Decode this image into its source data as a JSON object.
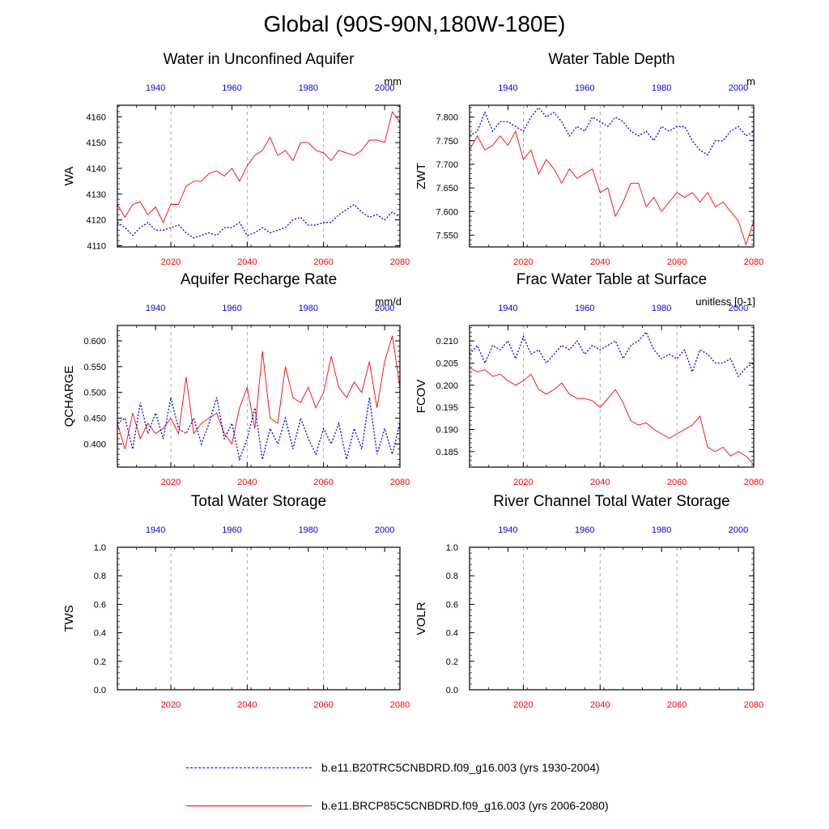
{
  "page": {
    "title": "Global (90S-90N,180W-180E)"
  },
  "legend": [
    {
      "label": "b.e11.B20TRC5CNBDRD.f09_g16.003 (yrs 1930-2004)",
      "color": "#0000ff",
      "style": "dashed"
    },
    {
      "label": "b.e11.BRCP85C5CNBDRD.f09_g16.003 (yrs 2006-2080)",
      "color": "#ff0000",
      "style": "solid"
    }
  ],
  "colors": {
    "future": "#ff0000",
    "historical": "#0000ff",
    "grid": "#999999"
  },
  "chart_data": [
    {
      "type": "line",
      "title": "Water in Unconfined Aquifer",
      "ylabel": "WA",
      "units": "mm",
      "x_bottom": {
        "range": [
          2006,
          2080
        ],
        "ticks": [
          2020,
          2040,
          2060,
          2080
        ],
        "color": "#ff0000"
      },
      "x_top": {
        "range": [
          1930,
          2004
        ],
        "ticks": [
          1940,
          1960,
          1980,
          2000
        ],
        "color": "#0000ff"
      },
      "ylim": [
        4109.5,
        4164.5
      ],
      "yticks": [
        4110,
        4120,
        4130,
        4140,
        4150,
        4160
      ],
      "ytick_labels": [
        "4110",
        "4120",
        "4130",
        "4140",
        "4150",
        "4160"
      ],
      "series": [
        {
          "name": "b.e11.BRCP85C5CNBDRD.f09_g16.003 (yrs 2006-2080)",
          "style": "solid",
          "color": "#ff0000",
          "x": [
            2006,
            2008,
            2010,
            2012,
            2014,
            2016,
            2018,
            2020,
            2022,
            2024,
            2026,
            2028,
            2030,
            2032,
            2034,
            2036,
            2038,
            2040,
            2042,
            2044,
            2046,
            2048,
            2050,
            2052,
            2054,
            2056,
            2058,
            2060,
            2062,
            2064,
            2066,
            2068,
            2070,
            2072,
            2074,
            2076,
            2078,
            2080
          ],
          "values": [
            4126,
            4121,
            4126,
            4127,
            4122,
            4125,
            4119,
            4126,
            4126,
            4133,
            4135,
            4135,
            4138,
            4139,
            4137,
            4140,
            4135,
            4141,
            4145,
            4147,
            4152,
            4145,
            4147,
            4143,
            4150,
            4150,
            4147,
            4146,
            4143,
            4147,
            4146,
            4145,
            4147,
            4151,
            4151,
            4150,
            4162,
            4158
          ]
        },
        {
          "name": "b.e11.B20TRC5CNBDRD.f09_g16.003 (yrs 1930-2004)",
          "style": "dashed",
          "color": "#0000ff",
          "x": [
            2006,
            2008,
            2010,
            2012,
            2014,
            2016,
            2018,
            2020,
            2022,
            2024,
            2026,
            2028,
            2030,
            2032,
            2034,
            2036,
            2038,
            2040,
            2042,
            2044,
            2046,
            2048,
            2050,
            2052,
            2054,
            2056,
            2058,
            2060,
            2062,
            2064,
            2066,
            2068,
            2070,
            2072,
            2074,
            2076,
            2078,
            2080
          ],
          "values": [
            4119,
            4117,
            4114,
            4117,
            4119,
            4116,
            4116,
            4117,
            4118,
            4115,
            4113,
            4114,
            4115,
            4114,
            4117,
            4117,
            4119,
            4114,
            4115,
            4117,
            4115,
            4116,
            4117,
            4120,
            4121,
            4118,
            4118,
            4119,
            4119,
            4122,
            4124,
            4126,
            4123,
            4121,
            4122,
            4120,
            4123,
            4121
          ]
        }
      ]
    },
    {
      "type": "line",
      "title": "Water Table Depth",
      "ylabel": "ZWT",
      "units": "m",
      "x_bottom": {
        "range": [
          2006,
          2080
        ],
        "ticks": [
          2020,
          2040,
          2060,
          2080
        ],
        "color": "#ff0000"
      },
      "x_top": {
        "range": [
          1930,
          2004
        ],
        "ticks": [
          1940,
          1960,
          1980,
          2000
        ],
        "color": "#0000ff"
      },
      "ylim": [
        7.525,
        7.825
      ],
      "yticks": [
        7.55,
        7.6,
        7.65,
        7.7,
        7.75,
        7.8
      ],
      "ytick_labels": [
        "7.550",
        "7.600",
        "7.650",
        "7.700",
        "7.750",
        "7.800"
      ],
      "series": [
        {
          "name": "b.e11.BRCP85C5CNBDRD.f09_g16.003 (yrs 2006-2080)",
          "style": "solid",
          "color": "#ff0000",
          "x": [
            2006,
            2008,
            2010,
            2012,
            2014,
            2016,
            2018,
            2020,
            2022,
            2024,
            2026,
            2028,
            2030,
            2032,
            2034,
            2036,
            2038,
            2040,
            2042,
            2044,
            2046,
            2048,
            2050,
            2052,
            2054,
            2056,
            2058,
            2060,
            2062,
            2064,
            2066,
            2068,
            2070,
            2072,
            2074,
            2076,
            2078,
            2080
          ],
          "values": [
            7.73,
            7.76,
            7.73,
            7.74,
            7.76,
            7.74,
            7.77,
            7.71,
            7.73,
            7.68,
            7.71,
            7.69,
            7.66,
            7.69,
            7.67,
            7.68,
            7.69,
            7.64,
            7.65,
            7.59,
            7.62,
            7.66,
            7.66,
            7.61,
            7.63,
            7.6,
            7.62,
            7.64,
            7.63,
            7.64,
            7.62,
            7.64,
            7.61,
            7.62,
            7.6,
            7.58,
            7.53,
            7.58
          ]
        },
        {
          "name": "b.e11.B20TRC5CNBDRD.f09_g16.003 (yrs 1930-2004)",
          "style": "dashed",
          "color": "#0000ff",
          "x": [
            2006,
            2008,
            2010,
            2012,
            2014,
            2016,
            2018,
            2020,
            2022,
            2024,
            2026,
            2028,
            2030,
            2032,
            2034,
            2036,
            2038,
            2040,
            2042,
            2044,
            2046,
            2048,
            2050,
            2052,
            2054,
            2056,
            2058,
            2060,
            2062,
            2064,
            2066,
            2068,
            2070,
            2072,
            2074,
            2076,
            2078,
            2080
          ],
          "values": [
            7.76,
            7.77,
            7.81,
            7.77,
            7.79,
            7.79,
            7.78,
            7.77,
            7.8,
            7.82,
            7.8,
            7.81,
            7.79,
            7.76,
            7.78,
            7.77,
            7.8,
            7.79,
            7.78,
            7.8,
            7.79,
            7.77,
            7.76,
            7.77,
            7.75,
            7.78,
            7.77,
            7.78,
            7.78,
            7.75,
            7.73,
            7.72,
            7.75,
            7.75,
            7.77,
            7.78,
            7.76,
            7.77
          ]
        }
      ]
    },
    {
      "type": "line",
      "title": "Aquifer Recharge Rate",
      "ylabel": "QCHARGE",
      "units": "mm/d",
      "x_bottom": {
        "range": [
          2006,
          2080
        ],
        "ticks": [
          2020,
          2040,
          2060,
          2080
        ],
        "color": "#ff0000"
      },
      "x_top": {
        "range": [
          1930,
          2004
        ],
        "ticks": [
          1940,
          1960,
          1980,
          2000
        ],
        "color": "#0000ff"
      },
      "ylim": [
        0.355,
        0.63
      ],
      "yticks": [
        0.4,
        0.45,
        0.5,
        0.55,
        0.6
      ],
      "ytick_labels": [
        "0.400",
        "0.450",
        "0.500",
        "0.550",
        "0.600"
      ],
      "series": [
        {
          "name": "b.e11.BRCP85C5CNBDRD.f09_g16.003 (yrs 2006-2080)",
          "style": "solid",
          "color": "#ff0000",
          "x": [
            2006,
            2008,
            2010,
            2012,
            2014,
            2016,
            2018,
            2020,
            2022,
            2024,
            2026,
            2028,
            2030,
            2032,
            2034,
            2036,
            2038,
            2040,
            2042,
            2044,
            2046,
            2048,
            2050,
            2052,
            2054,
            2056,
            2058,
            2060,
            2062,
            2064,
            2066,
            2068,
            2070,
            2072,
            2074,
            2076,
            2078,
            2080
          ],
          "values": [
            0.44,
            0.39,
            0.46,
            0.41,
            0.44,
            0.42,
            0.43,
            0.45,
            0.42,
            0.53,
            0.42,
            0.44,
            0.45,
            0.46,
            0.42,
            0.4,
            0.47,
            0.51,
            0.43,
            0.58,
            0.45,
            0.44,
            0.55,
            0.49,
            0.48,
            0.51,
            0.47,
            0.5,
            0.57,
            0.51,
            0.49,
            0.52,
            0.5,
            0.56,
            0.47,
            0.56,
            0.61,
            0.51
          ]
        },
        {
          "name": "b.e11.B20TRC5CNBDRD.f09_g16.003 (yrs 1930-2004)",
          "style": "dashed",
          "color": "#0000ff",
          "x": [
            2006,
            2008,
            2010,
            2012,
            2014,
            2016,
            2018,
            2020,
            2022,
            2024,
            2026,
            2028,
            2030,
            2032,
            2034,
            2036,
            2038,
            2040,
            2042,
            2044,
            2046,
            2048,
            2050,
            2052,
            2054,
            2056,
            2058,
            2060,
            2062,
            2064,
            2066,
            2068,
            2070,
            2072,
            2074,
            2076,
            2078,
            2080
          ],
          "values": [
            0.44,
            0.45,
            0.39,
            0.48,
            0.42,
            0.46,
            0.41,
            0.49,
            0.43,
            0.42,
            0.45,
            0.4,
            0.44,
            0.49,
            0.41,
            0.44,
            0.37,
            0.41,
            0.47,
            0.37,
            0.43,
            0.4,
            0.45,
            0.39,
            0.45,
            0.41,
            0.38,
            0.43,
            0.4,
            0.44,
            0.37,
            0.43,
            0.39,
            0.49,
            0.38,
            0.43,
            0.38,
            0.44
          ]
        }
      ]
    },
    {
      "type": "line",
      "title": "Frac Water Table at Surface",
      "ylabel": "FCOV",
      "units": "unitless [0-1]",
      "x_bottom": {
        "range": [
          2006,
          2080
        ],
        "ticks": [
          2020,
          2040,
          2060,
          2080
        ],
        "color": "#ff0000"
      },
      "x_top": {
        "range": [
          1930,
          2004
        ],
        "ticks": [
          1940,
          1960,
          1980,
          2000
        ],
        "color": "#0000ff"
      },
      "ylim": [
        0.1815,
        0.2135
      ],
      "yticks": [
        0.185,
        0.19,
        0.195,
        0.2,
        0.205,
        0.21
      ],
      "ytick_labels": [
        "0.185",
        "0.190",
        "0.195",
        "0.200",
        "0.205",
        "0.210"
      ],
      "series": [
        {
          "name": "b.e11.BRCP85C5CNBDRD.f09_g16.003 (yrs 2006-2080)",
          "style": "solid",
          "color": "#ff0000",
          "x": [
            2006,
            2008,
            2010,
            2012,
            2014,
            2016,
            2018,
            2020,
            2022,
            2024,
            2026,
            2028,
            2030,
            2032,
            2034,
            2036,
            2038,
            2040,
            2042,
            2044,
            2046,
            2048,
            2050,
            2052,
            2054,
            2056,
            2058,
            2060,
            2062,
            2064,
            2066,
            2068,
            2070,
            2072,
            2074,
            2076,
            2078,
            2080
          ],
          "values": [
            0.204,
            0.203,
            0.2035,
            0.202,
            0.2025,
            0.201,
            0.2,
            0.201,
            0.2025,
            0.199,
            0.198,
            0.199,
            0.2005,
            0.198,
            0.197,
            0.197,
            0.1965,
            0.195,
            0.197,
            0.199,
            0.196,
            0.192,
            0.191,
            0.1915,
            0.19,
            0.189,
            0.188,
            0.189,
            0.19,
            0.191,
            0.193,
            0.186,
            0.185,
            0.186,
            0.184,
            0.185,
            0.184,
            0.182
          ]
        },
        {
          "name": "b.e11.B20TRC5CNBDRD.f09_g16.003 (yrs 1930-2004)",
          "style": "dashed",
          "color": "#0000ff",
          "x": [
            2006,
            2008,
            2010,
            2012,
            2014,
            2016,
            2018,
            2020,
            2022,
            2024,
            2026,
            2028,
            2030,
            2032,
            2034,
            2036,
            2038,
            2040,
            2042,
            2044,
            2046,
            2048,
            2050,
            2052,
            2054,
            2056,
            2058,
            2060,
            2062,
            2064,
            2066,
            2068,
            2070,
            2072,
            2074,
            2076,
            2078,
            2080
          ],
          "values": [
            0.207,
            0.209,
            0.205,
            0.209,
            0.208,
            0.21,
            0.206,
            0.211,
            0.207,
            0.208,
            0.205,
            0.207,
            0.209,
            0.208,
            0.21,
            0.207,
            0.209,
            0.208,
            0.209,
            0.21,
            0.206,
            0.209,
            0.21,
            0.212,
            0.208,
            0.206,
            0.207,
            0.206,
            0.208,
            0.203,
            0.208,
            0.207,
            0.205,
            0.205,
            0.206,
            0.202,
            0.204,
            0.205
          ]
        }
      ]
    },
    {
      "type": "line",
      "title": "Total Water Storage",
      "ylabel": "TWS",
      "units": "",
      "x_bottom": {
        "range": [
          2006,
          2080
        ],
        "ticks": [
          2020,
          2040,
          2060,
          2080
        ],
        "color": "#ff0000"
      },
      "x_top": {
        "range": [
          1930,
          2004
        ],
        "ticks": [
          1940,
          1960,
          1980,
          2000
        ],
        "color": "#0000ff"
      },
      "ylim": [
        0.0,
        1.0
      ],
      "yticks": [
        0.0,
        0.2,
        0.4,
        0.6,
        0.8,
        1.0
      ],
      "ytick_labels": [
        "0.0",
        "0.2",
        "0.4",
        "0.6",
        "0.8",
        "1.0"
      ],
      "series": []
    },
    {
      "type": "line",
      "title": "River Channel Total Water Storage",
      "ylabel": "VOLR",
      "units": "",
      "x_bottom": {
        "range": [
          2006,
          2080
        ],
        "ticks": [
          2020,
          2040,
          2060,
          2080
        ],
        "color": "#ff0000"
      },
      "x_top": {
        "range": [
          1930,
          2004
        ],
        "ticks": [
          1940,
          1960,
          1980,
          2000
        ],
        "color": "#0000ff"
      },
      "ylim": [
        0.0,
        1.0
      ],
      "yticks": [
        0.0,
        0.2,
        0.4,
        0.6,
        0.8,
        1.0
      ],
      "ytick_labels": [
        "0.0",
        "0.2",
        "0.4",
        "0.6",
        "0.8",
        "1.0"
      ],
      "series": []
    }
  ]
}
